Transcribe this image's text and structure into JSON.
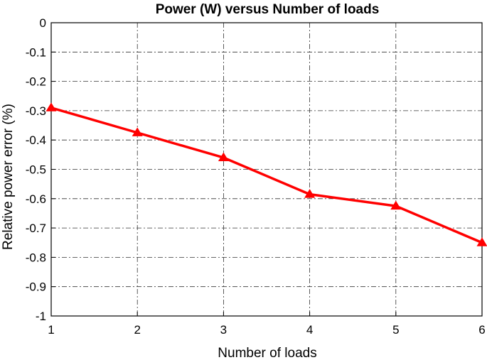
{
  "chart_data": {
    "type": "line",
    "title": "Power (W) versus Number of loads",
    "xlabel": "Number of loads",
    "ylabel": "Relative power error (%)",
    "x": [
      1,
      2,
      3,
      4,
      5,
      6
    ],
    "xlim": [
      1,
      6
    ],
    "ylim": [
      -1,
      0
    ],
    "xticks": [
      1,
      2,
      3,
      4,
      5,
      6
    ],
    "yticks": [
      0,
      -0.1,
      -0.2,
      -0.3,
      -0.4,
      -0.5,
      -0.6,
      -0.7,
      -0.8,
      -0.9,
      -1
    ],
    "grid": true,
    "series": [
      {
        "values": [
          -0.29,
          -0.375,
          -0.46,
          -0.585,
          -0.625,
          -0.75
        ],
        "color": "#ff0000",
        "marker": "triangle"
      }
    ]
  }
}
